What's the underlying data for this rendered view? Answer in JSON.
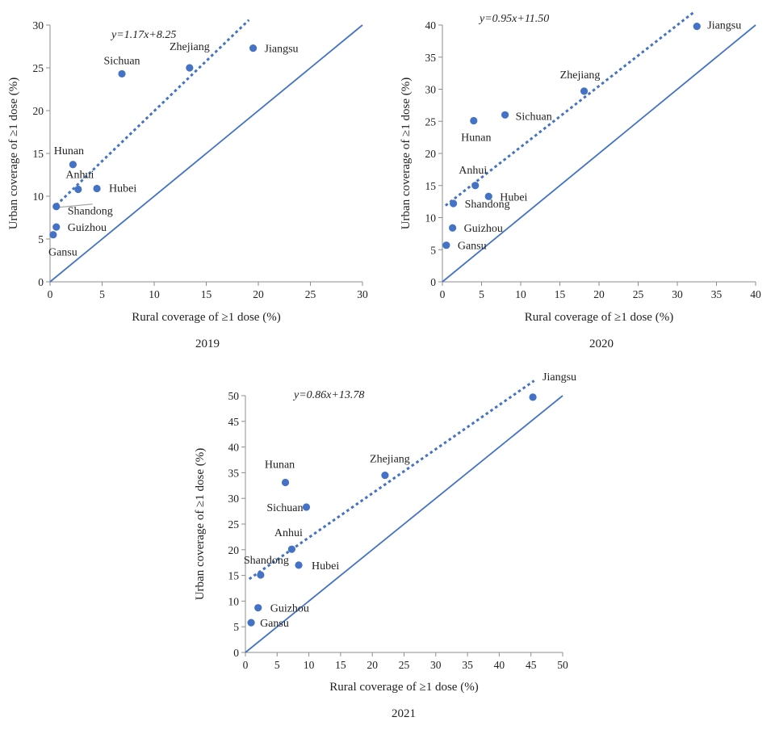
{
  "accent_color": "#4472C4",
  "chart_data": [
    {
      "type": "scatter",
      "title": "2019",
      "xlabel": "Rural coverage of ≥1 dose (%)",
      "ylabel": "Urban coverage of ≥1 dose (%)",
      "xlim": [
        0,
        30
      ],
      "ylim": [
        0,
        30
      ],
      "xticks": [
        0,
        5,
        10,
        15,
        20,
        25,
        30
      ],
      "yticks": [
        0,
        5,
        10,
        15,
        20,
        25,
        30
      ],
      "equation": "y=1.17x+8.25",
      "trend": {
        "slope": 1.17,
        "intercept": 8.25,
        "x_range": [
          0.6,
          19.1
        ],
        "style": "dotted"
      },
      "reference_line": {
        "label": "y = x",
        "style": "solid",
        "x_range": [
          0,
          30
        ]
      },
      "points": [
        {
          "name": "Jiangsu",
          "x": 19.5,
          "y": 27.3
        },
        {
          "name": "Zhejiang",
          "x": 13.4,
          "y": 25.0
        },
        {
          "name": "Sichuan",
          "x": 6.9,
          "y": 24.3
        },
        {
          "name": "Hunan",
          "x": 2.2,
          "y": 13.7
        },
        {
          "name": "Anhui",
          "x": 2.7,
          "y": 10.8
        },
        {
          "name": "Hubei",
          "x": 4.5,
          "y": 10.9
        },
        {
          "name": "Shandong",
          "x": 0.6,
          "y": 8.8
        },
        {
          "name": "Guizhou",
          "x": 0.6,
          "y": 6.4
        },
        {
          "name": "Gansu",
          "x": 0.3,
          "y": 5.5
        }
      ]
    },
    {
      "type": "scatter",
      "title": "2020",
      "xlabel": "Rural coverage of ≥1 dose (%)",
      "ylabel": "Urban coverage of ≥1 dose (%)",
      "xlim": [
        0,
        40
      ],
      "ylim": [
        0,
        40
      ],
      "xticks": [
        0,
        5,
        10,
        15,
        20,
        25,
        30,
        35,
        40
      ],
      "yticks": [
        0,
        5,
        10,
        15,
        20,
        25,
        30,
        35,
        40
      ],
      "equation": "y=0.95x+11.50",
      "trend": {
        "slope": 0.95,
        "intercept": 11.5,
        "x_range": [
          0.4,
          32.2
        ],
        "style": "dotted"
      },
      "reference_line": {
        "label": "y = x",
        "style": "solid",
        "x_range": [
          0,
          40
        ]
      },
      "points": [
        {
          "name": "Jiangsu",
          "x": 32.5,
          "y": 39.8
        },
        {
          "name": "Zhejiang",
          "x": 18.1,
          "y": 29.7
        },
        {
          "name": "Sichuan",
          "x": 8.0,
          "y": 26.0
        },
        {
          "name": "Hunan",
          "x": 4.0,
          "y": 25.1
        },
        {
          "name": "Anhui",
          "x": 4.2,
          "y": 15.0
        },
        {
          "name": "Hubei",
          "x": 5.9,
          "y": 13.3
        },
        {
          "name": "Shandong",
          "x": 1.4,
          "y": 12.2
        },
        {
          "name": "Guizhou",
          "x": 1.3,
          "y": 8.4
        },
        {
          "name": "Gansu",
          "x": 0.5,
          "y": 5.7
        }
      ]
    },
    {
      "type": "scatter",
      "title": "2021",
      "xlabel": "Rural coverage of ≥1 dose (%)",
      "ylabel": "Urban coverage of ≥1 dose (%)",
      "xlim": [
        0,
        50
      ],
      "ylim": [
        0,
        50
      ],
      "xticks": [
        0,
        5,
        10,
        15,
        20,
        25,
        30,
        35,
        40,
        45,
        50
      ],
      "yticks": [
        0,
        5,
        10,
        15,
        20,
        25,
        30,
        35,
        40,
        45,
        50
      ],
      "equation": "y=0.86x+13.78",
      "trend": {
        "slope": 0.86,
        "intercept": 13.78,
        "x_range": [
          0.6,
          45.5
        ],
        "style": "dotted"
      },
      "reference_line": {
        "label": "y = x",
        "style": "solid",
        "x_range": [
          0,
          54
        ]
      },
      "points": [
        {
          "name": "Jiangsu",
          "x": 45.3,
          "y": 49.7
        },
        {
          "name": "Zhejiang",
          "x": 22.0,
          "y": 34.5
        },
        {
          "name": "Hunan",
          "x": 6.3,
          "y": 33.1
        },
        {
          "name": "Sichuan",
          "x": 9.6,
          "y": 28.3
        },
        {
          "name": "Anhui",
          "x": 7.3,
          "y": 20.1
        },
        {
          "name": "Hubei",
          "x": 8.4,
          "y": 17.0
        },
        {
          "name": "Shandong",
          "x": 2.4,
          "y": 15.1
        },
        {
          "name": "Guizhou",
          "x": 2.0,
          "y": 8.7
        },
        {
          "name": "Gansu",
          "x": 0.9,
          "y": 5.8
        }
      ]
    }
  ]
}
